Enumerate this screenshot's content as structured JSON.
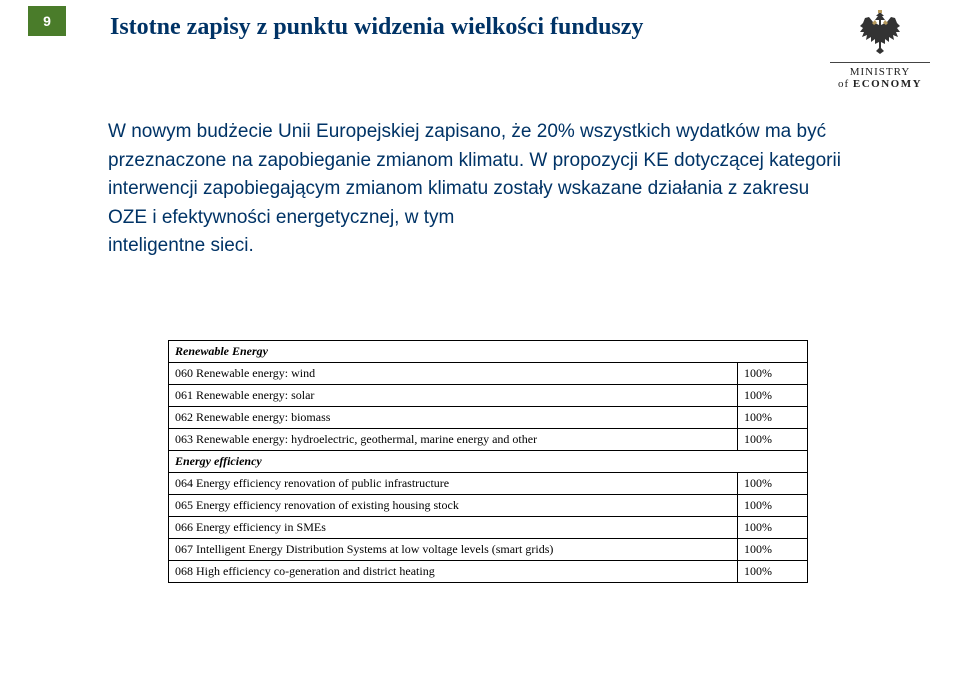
{
  "page_number": "9",
  "title": "Istotne zapisy z punktu widzenia wielkości funduszy",
  "logo": {
    "line1": "MINISTRY",
    "line2_prefix": "of ",
    "line2_bold": "ECONOMY"
  },
  "paragraph": "W nowym budżecie Unii Europejskiej zapisano, że 20% wszystkich wydatków ma być przeznaczone na zapobieganie zmianom klimatu. W propozycji KE dotyczącej kategorii interwencji zapobiegającym zmianom klimatu zostały wskazane działania z zakresu OZE i efektywności energetycznej, w tym",
  "smart_grid_line": "inteligentne sieci.",
  "sections": [
    {
      "header": "Renewable Energy",
      "rows": [
        {
          "label": "060 Renewable energy: wind",
          "value": "100%"
        },
        {
          "label": "061 Renewable energy: solar",
          "value": "100%"
        },
        {
          "label": "062 Renewable energy: biomass",
          "value": "100%"
        },
        {
          "label": "063 Renewable energy: hydroelectric, geothermal, marine energy and other",
          "value": "100%"
        }
      ]
    },
    {
      "header": "Energy efficiency",
      "rows": [
        {
          "label": "064 Energy efficiency renovation of public infrastructure",
          "value": "100%"
        },
        {
          "label": "065 Energy efficiency renovation of existing housing stock",
          "value": "100%"
        },
        {
          "label": "066 Energy efficiency in SMEs",
          "value": "100%"
        },
        {
          "label": "067 Intelligent Energy Distribution Systems at low voltage levels (smart grids)",
          "value": "100%"
        },
        {
          "label": "068 High efficiency co-generation and district heating",
          "value": "100%"
        }
      ]
    }
  ]
}
